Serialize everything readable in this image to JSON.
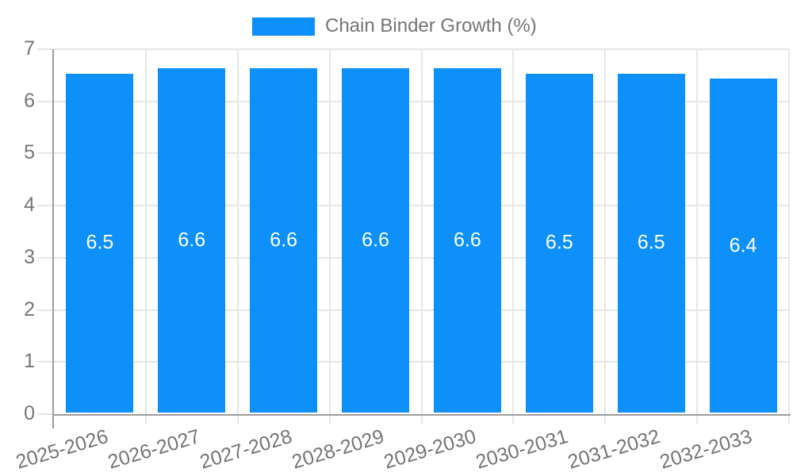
{
  "chart_data": {
    "type": "bar",
    "title": "",
    "legend": "Chain Binder Growth (%)",
    "legend_position": "top-center",
    "categories": [
      "2025-2026",
      "2026-2027",
      "2027-2028",
      "2028-2029",
      "2029-2030",
      "2030-2031",
      "2031-2032",
      "2032-2033"
    ],
    "values": [
      6.5,
      6.6,
      6.6,
      6.6,
      6.6,
      6.5,
      6.5,
      6.4
    ],
    "value_labels": [
      "6.5",
      "6.6",
      "6.6",
      "6.6",
      "6.6",
      "6.5",
      "6.5",
      "6.4"
    ],
    "xlabel": "",
    "ylabel": "",
    "ylim": [
      0,
      7
    ],
    "y_ticks": [
      0,
      1,
      2,
      3,
      4,
      5,
      6,
      7
    ],
    "grid": "horizontal and vertical, light gray",
    "x_tick_rotation_deg": -16.5,
    "colors": {
      "bar": "#0d90f9",
      "bar_label": "#ffffff",
      "gridline": "#e6e6e6",
      "axis_line": "#9e9e9e",
      "tick_label": "#757575",
      "legend_text": "#757575",
      "background": "#ffffff"
    }
  }
}
